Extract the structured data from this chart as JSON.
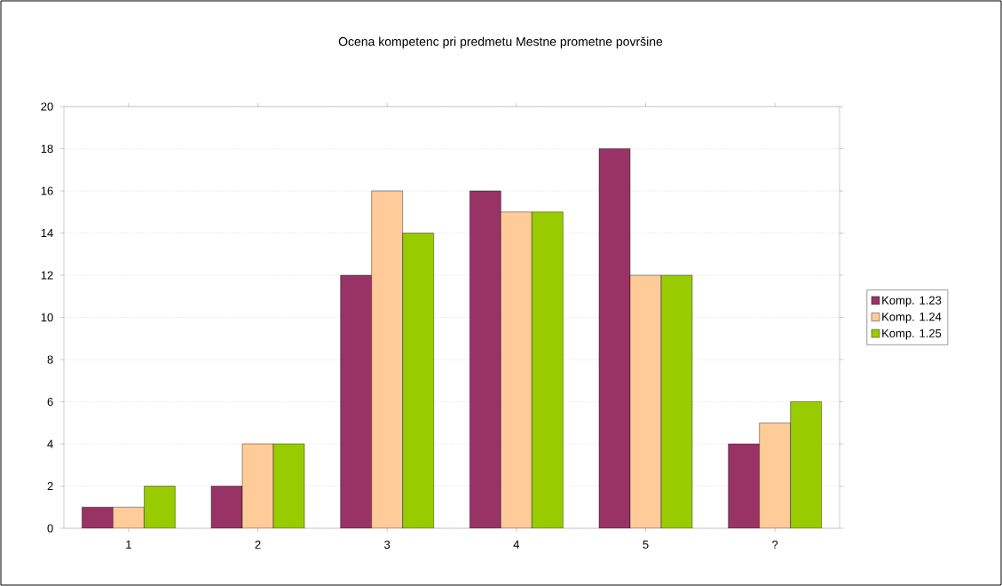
{
  "chart_data": {
    "type": "bar",
    "title": "Ocena kompetenc pri predmetu Mestne prometne površine",
    "categories": [
      "1",
      "2",
      "3",
      "4",
      "5",
      "?"
    ],
    "series": [
      {
        "name": "Komp. 1.23",
        "color": "#993366",
        "values": [
          1,
          2,
          12,
          16,
          18,
          4
        ]
      },
      {
        "name": "Komp. 1.24",
        "color": "#ffcc99",
        "values": [
          1,
          4,
          16,
          15,
          12,
          5
        ]
      },
      {
        "name": "Komp. 1.25",
        "color": "#99cc00",
        "values": [
          2,
          4,
          14,
          15,
          12,
          6
        ]
      }
    ],
    "ylim": [
      0,
      20
    ],
    "yticks": [
      0,
      2,
      4,
      6,
      8,
      10,
      12,
      14,
      16,
      18,
      20
    ],
    "grid": "y",
    "legend": "right"
  }
}
